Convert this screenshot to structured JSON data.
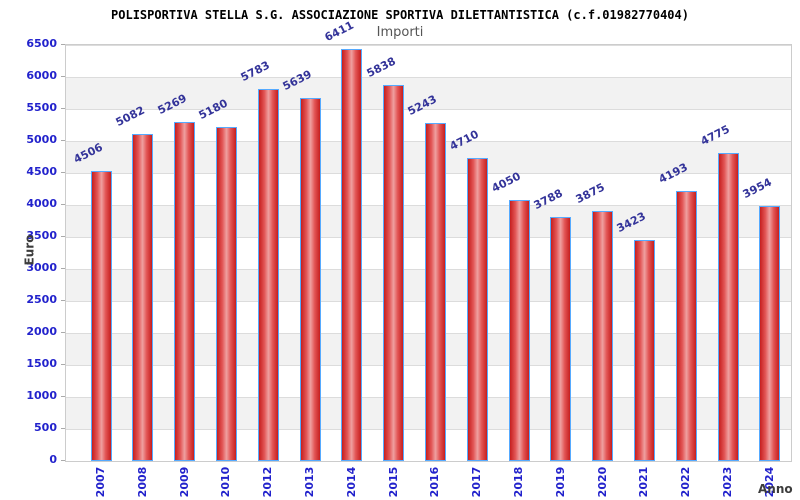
{
  "title": "POLISPORTIVA STELLA S.G. ASSOCIAZIONE SPORTIVA DILETTANTISTICA (c.f.01982770404)",
  "legend": {
    "label": "Importi"
  },
  "axes": {
    "x_label": "Anno",
    "y_label": "Euro",
    "y_ticks": [
      0,
      500,
      1000,
      1500,
      2000,
      2500,
      3000,
      3500,
      4000,
      4500,
      5000,
      5500,
      6000,
      6500
    ]
  },
  "chart_data": {
    "type": "bar",
    "title": "POLISPORTIVA STELLA S.G. ASSOCIAZIONE SPORTIVA DILETTANTISTICA (c.f.01982770404)",
    "categories": [
      "2007",
      "2008",
      "2009",
      "2010",
      "2012",
      "2013",
      "2014",
      "2015",
      "2016",
      "2017",
      "2018",
      "2019",
      "2020",
      "2021",
      "2022",
      "2023",
      "2024"
    ],
    "series": [
      {
        "name": "Importi",
        "values": [
          4506,
          5082,
          5269,
          5180,
          5783,
          5639,
          6411,
          5838,
          5243,
          4710,
          4050,
          3788,
          3875,
          3423,
          4193,
          4775,
          3954
        ]
      }
    ],
    "xlabel": "Anno",
    "ylabel": "Euro",
    "ylim": [
      0,
      6500
    ],
    "ytick_step": 500,
    "grid": true,
    "grid_bands": true,
    "legend_position": "top-center",
    "value_labels_rotated": true
  },
  "colors": {
    "axis_text": "#2222cc",
    "value_label": "#333399",
    "bar_edge": "#c61f1f",
    "bar_center": "#efa0a0",
    "bar_border": "#55aaff",
    "band_gray": "#f2f2f2",
    "gridline": "#dcdcdc",
    "plot_border": "#cccccc",
    "legend_text": "#555555",
    "axis_title_text": "#3c3c3c",
    "title_text": "#000000"
  }
}
